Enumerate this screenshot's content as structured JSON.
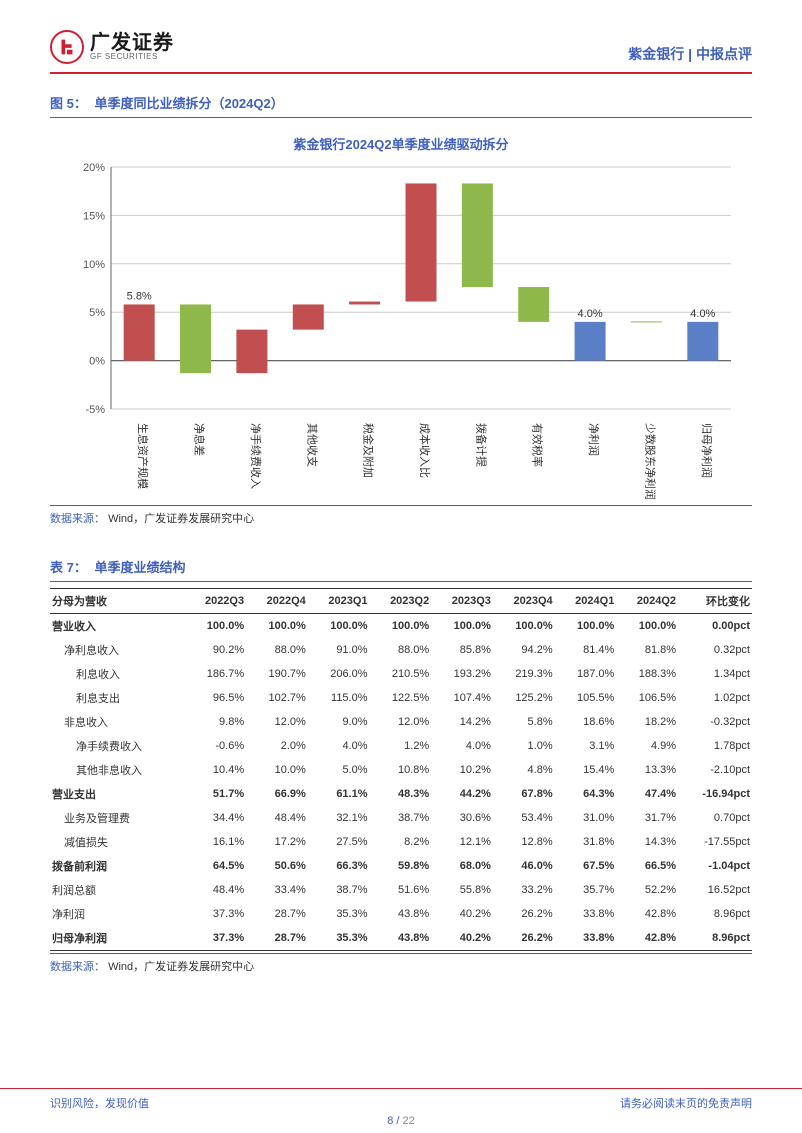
{
  "header": {
    "logo_cn": "广发证券",
    "logo_en": "GF SECURITIES",
    "right": "紫金银行 | 中报点评"
  },
  "figure": {
    "number": "图 5：",
    "title": "单季度同比业绩拆分（2024Q2）",
    "chart_title": "紫金银行2024Q2单季度业绩驱动拆分",
    "y_label_pct": [
      "20%",
      "15%",
      "10%",
      "5%",
      "0%",
      "-5%"
    ],
    "y_ticks": [
      20,
      15,
      10,
      5,
      0,
      -5
    ],
    "y_min": -5,
    "y_max": 20,
    "grid_color": "#cccccc",
    "axis_color": "#666666",
    "background": "#ffffff",
    "bar_width": 0.55,
    "categories": [
      "生息资产规模",
      "净息差",
      "净手续费收入",
      "其他收支",
      "税金及附加",
      "成本收入比",
      "拨备计提",
      "有效税率",
      "净利润",
      "少数股东净利润",
      "归母净利润"
    ],
    "bars": [
      {
        "low": 0.0,
        "high": 5.8,
        "color": "#c14f4f",
        "label": "5.8%",
        "show_label": true
      },
      {
        "low": -1.3,
        "high": 5.8,
        "color": "#8fb84a",
        "label": "",
        "show_label": false
      },
      {
        "low": -1.3,
        "high": 3.2,
        "color": "#c14f4f",
        "label": "",
        "show_label": false
      },
      {
        "low": 3.2,
        "high": 5.8,
        "color": "#c14f4f",
        "label": "",
        "show_label": false
      },
      {
        "low": 5.8,
        "high": 6.1,
        "color": "#c14f4f",
        "label": "",
        "show_label": false
      },
      {
        "low": 6.1,
        "high": 18.3,
        "color": "#c14f4f",
        "label": "",
        "show_label": false
      },
      {
        "low": 7.6,
        "high": 18.3,
        "color": "#8fb84a",
        "label": "",
        "show_label": false
      },
      {
        "low": 4.0,
        "high": 7.6,
        "color": "#8fb84a",
        "label": "",
        "show_label": false
      },
      {
        "low": 0.0,
        "high": 4.0,
        "color": "#5b7fc7",
        "label": "4.0%",
        "show_label": true
      },
      {
        "low": 4.0,
        "high": 4.05,
        "color": "#8fb84a",
        "label": "",
        "show_label": false
      },
      {
        "low": 0.0,
        "high": 4.0,
        "color": "#5b7fc7",
        "label": "4.0%",
        "show_label": true
      }
    ]
  },
  "source": {
    "label": "数据来源：",
    "text": "Wind，广发证券发展研究中心"
  },
  "table": {
    "number": "表 7：",
    "title": "单季度业绩结构",
    "columns": [
      "分母为营收",
      "2022Q3",
      "2022Q4",
      "2023Q1",
      "2023Q2",
      "2023Q3",
      "2023Q4",
      "2024Q1",
      "2024Q2",
      "环比变化"
    ],
    "rows": [
      {
        "bold": true,
        "indent": 0,
        "cells": [
          "营业收入",
          "100.0%",
          "100.0%",
          "100.0%",
          "100.0%",
          "100.0%",
          "100.0%",
          "100.0%",
          "100.0%",
          "0.00pct"
        ]
      },
      {
        "bold": false,
        "indent": 1,
        "cells": [
          "净利息收入",
          "90.2%",
          "88.0%",
          "91.0%",
          "88.0%",
          "85.8%",
          "94.2%",
          "81.4%",
          "81.8%",
          "0.32pct"
        ]
      },
      {
        "bold": false,
        "indent": 2,
        "cells": [
          "利息收入",
          "186.7%",
          "190.7%",
          "206.0%",
          "210.5%",
          "193.2%",
          "219.3%",
          "187.0%",
          "188.3%",
          "1.34pct"
        ]
      },
      {
        "bold": false,
        "indent": 2,
        "cells": [
          "利息支出",
          "96.5%",
          "102.7%",
          "115.0%",
          "122.5%",
          "107.4%",
          "125.2%",
          "105.5%",
          "106.5%",
          "1.02pct"
        ]
      },
      {
        "bold": false,
        "indent": 1,
        "cells": [
          "非息收入",
          "9.8%",
          "12.0%",
          "9.0%",
          "12.0%",
          "14.2%",
          "5.8%",
          "18.6%",
          "18.2%",
          "-0.32pct"
        ]
      },
      {
        "bold": false,
        "indent": 2,
        "cells": [
          "净手续费收入",
          "-0.6%",
          "2.0%",
          "4.0%",
          "1.2%",
          "4.0%",
          "1.0%",
          "3.1%",
          "4.9%",
          "1.78pct"
        ]
      },
      {
        "bold": false,
        "indent": 2,
        "cells": [
          "其他非息收入",
          "10.4%",
          "10.0%",
          "5.0%",
          "10.8%",
          "10.2%",
          "4.8%",
          "15.4%",
          "13.3%",
          "-2.10pct"
        ]
      },
      {
        "bold": true,
        "indent": 0,
        "cells": [
          "营业支出",
          "51.7%",
          "66.9%",
          "61.1%",
          "48.3%",
          "44.2%",
          "67.8%",
          "64.3%",
          "47.4%",
          "-16.94pct"
        ]
      },
      {
        "bold": false,
        "indent": 1,
        "cells": [
          "业务及管理费",
          "34.4%",
          "48.4%",
          "32.1%",
          "38.7%",
          "30.6%",
          "53.4%",
          "31.0%",
          "31.7%",
          "0.70pct"
        ]
      },
      {
        "bold": false,
        "indent": 1,
        "cells": [
          "减值损失",
          "16.1%",
          "17.2%",
          "27.5%",
          "8.2%",
          "12.1%",
          "12.8%",
          "31.8%",
          "14.3%",
          "-17.55pct"
        ]
      },
      {
        "bold": true,
        "indent": 0,
        "cells": [
          "拨备前利润",
          "64.5%",
          "50.6%",
          "66.3%",
          "59.8%",
          "68.0%",
          "46.0%",
          "67.5%",
          "66.5%",
          "-1.04pct"
        ]
      },
      {
        "bold": false,
        "indent": 0,
        "cells": [
          "利润总额",
          "48.4%",
          "33.4%",
          "38.7%",
          "51.6%",
          "55.8%",
          "33.2%",
          "35.7%",
          "52.2%",
          "16.52pct"
        ]
      },
      {
        "bold": false,
        "indent": 0,
        "cells": [
          "净利润",
          "37.3%",
          "28.7%",
          "35.3%",
          "43.8%",
          "40.2%",
          "26.2%",
          "33.8%",
          "42.8%",
          "8.96pct"
        ]
      },
      {
        "bold": true,
        "indent": 0,
        "last": true,
        "cells": [
          "归母净利润",
          "37.3%",
          "28.7%",
          "35.3%",
          "43.8%",
          "40.2%",
          "26.2%",
          "33.8%",
          "42.8%",
          "8.96pct"
        ]
      }
    ]
  },
  "footer": {
    "left": "识别风险，发现价值",
    "right": "请务必阅读末页的免责声明",
    "page": "8",
    "sep": " / ",
    "total": "22"
  }
}
